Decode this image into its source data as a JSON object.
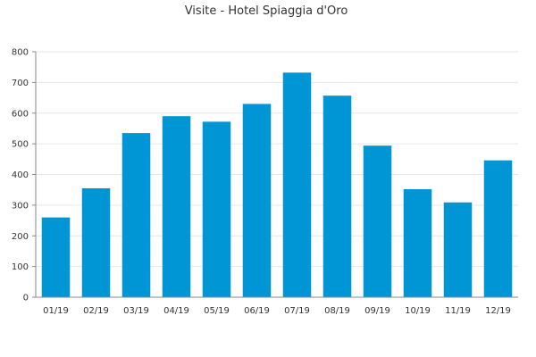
{
  "chart_data": {
    "type": "bar",
    "title": "Visite - Hotel Spiaggia d'Oro",
    "xlabel": "",
    "ylabel": "",
    "categories": [
      "01/19",
      "02/19",
      "03/19",
      "04/19",
      "05/19",
      "06/19",
      "07/19",
      "08/19",
      "09/19",
      "10/19",
      "11/19",
      "12/19"
    ],
    "values": [
      260,
      355,
      535,
      590,
      572,
      630,
      732,
      657,
      494,
      352,
      309,
      446
    ],
    "ylim": [
      0,
      800
    ],
    "yticks": [
      0,
      100,
      200,
      300,
      400,
      500,
      600,
      700,
      800
    ],
    "grid": true,
    "legend": "none",
    "bar_color": "#0095d5"
  }
}
